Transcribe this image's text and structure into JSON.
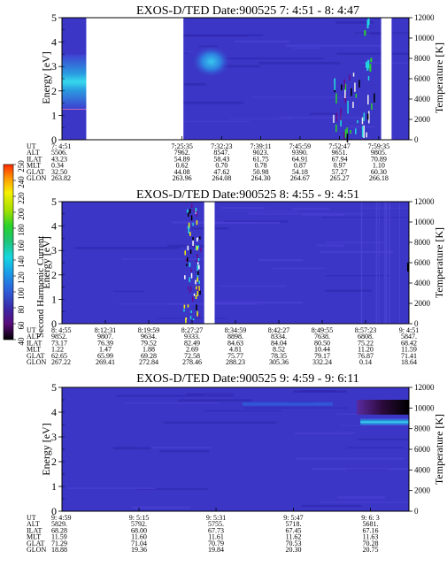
{
  "colorbar": {
    "title": "Second Harmonic Current",
    "ticks": [
      "40",
      "60",
      "80",
      "100",
      "120",
      "140",
      "160",
      "180",
      "200",
      "220",
      "240",
      "250"
    ],
    "colors": [
      "#000000",
      "#6a0a8a",
      "#3a2aa8",
      "#2f5fd9",
      "#1a9be8",
      "#17d6e0",
      "#20c47a",
      "#2ad22a",
      "#a6e000",
      "#f6f000",
      "#ff9a00",
      "#ff2a00"
    ]
  },
  "chart_data": [
    {
      "type": "heatmap",
      "title": "EXOS-D/TED   Date:900525  7: 4:51 - 8: 4:47",
      "ylabel": "Energy [eV]",
      "y2label": "Temperature [K]",
      "ylim": [
        0,
        5
      ],
      "y2lim": [
        0,
        12000
      ],
      "y_ticks": [
        "0",
        "1",
        "2",
        "3",
        "4",
        "5"
      ],
      "y2_ticks": [
        "0",
        "2000",
        "4000",
        "6000",
        "8000",
        "10000",
        "12000"
      ],
      "x_time_ticks": [
        "7: 4:51",
        "7:25:35",
        "7:32:23",
        "7:39:11",
        "7:45:59",
        "7:52:47",
        "7:59:35"
      ],
      "x_time_values": [
        0.0,
        0.346,
        0.46,
        0.573,
        0.686,
        0.8,
        0.913
      ],
      "data_gaps": [
        [
          0.07,
          0.35
        ],
        [
          0.92,
          0.95
        ]
      ],
      "ephemeris": [
        {
          "label": "UT",
          "values": [
            "7: 4:51",
            "7:25:35",
            "7:32:23",
            "7:39:11",
            "7:45:59",
            "7:52:47",
            "7:59:35"
          ]
        },
        {
          "label": "ALT",
          "values": [
            "5506.",
            "7962.",
            "8547.",
            "9023.",
            "9390.",
            "9651.",
            "9805."
          ]
        },
        {
          "label": "ILAT",
          "values": [
            "43.23",
            "54.89",
            "58.43",
            "61.75",
            "64.91",
            "67.94",
            "70.89"
          ]
        },
        {
          "label": "MLT",
          "values": [
            "0.34",
            "0.62",
            "0.70",
            "0.78",
            "0.87",
            "0.97",
            "1.10"
          ]
        },
        {
          "label": "GLAT",
          "values": [
            "32.50",
            "44.08",
            "47.62",
            "50.98",
            "54.18",
            "57.27",
            "60.30"
          ]
        },
        {
          "label": "GLON",
          "values": [
            "263.82",
            "263.96",
            "264.08",
            "264.30",
            "264.67",
            "265.27",
            "266.18"
          ]
        }
      ]
    },
    {
      "type": "heatmap",
      "title": "EXOS-D/TED   Date:900525  8: 4:55 - 9: 4:51",
      "ylabel": "Energy [eV]",
      "y2label": "Temperature [K]",
      "ylim": [
        0,
        5
      ],
      "y2lim": [
        0,
        12000
      ],
      "y_ticks": [
        "0",
        "1",
        "2",
        "3",
        "4",
        "5"
      ],
      "y2_ticks": [
        "0",
        "2000",
        "4000",
        "6000",
        "8000",
        "10000",
        "12000"
      ],
      "x_time_ticks": [
        "8: 4:55",
        "8:12:31",
        "8:19:59",
        "8:27:27",
        "8:34:59",
        "8:42:27",
        "8:49:55",
        "8:57:23",
        "9: 4:51"
      ],
      "x_time_values": [
        0.0,
        0.125,
        0.25,
        0.375,
        0.5,
        0.625,
        0.75,
        0.875,
        1.0
      ],
      "data_gaps": [
        [
          0.41,
          0.44
        ]
      ],
      "ephemeris": [
        {
          "label": "UT",
          "values": [
            "8: 4:55",
            "8:12:31",
            "8:19:59",
            "8:27:27",
            "8:34:59",
            "8:42:27",
            "8:49:55",
            "8:57:23",
            "9: 4:51"
          ]
        },
        {
          "label": "ALT",
          "values": [
            "9852.",
            "9807.",
            "9634.",
            "9333.",
            "8898.",
            "8334.",
            "7638.",
            "6808.",
            "5847."
          ]
        },
        {
          "label": "ILAT",
          "values": [
            "73.17",
            "76.39",
            "79.52",
            "82.49",
            "84.63",
            "84.04",
            "80.50",
            "75.22",
            "68.42"
          ]
        },
        {
          "label": "MLT",
          "values": [
            "1.22",
            "1.47",
            "1.88",
            "2.69",
            "4.81",
            "8.52",
            "10.44",
            "11.20",
            "11.59"
          ]
        },
        {
          "label": "GLAT",
          "values": [
            "62.65",
            "65.99",
            "69.28",
            "72.58",
            "75.77",
            "78.35",
            "79.17",
            "76.87",
            "71.41"
          ]
        },
        {
          "label": "GLON",
          "values": [
            "267.22",
            "269.41",
            "272.84",
            "278.46",
            "288.23",
            "305.36",
            "332.24",
            "0.14",
            "18.64"
          ]
        }
      ]
    },
    {
      "type": "heatmap",
      "title": "EXOS-D/TED   Date:900525  9: 4:59 - 9: 6:11",
      "ylabel": "Energy [eV]",
      "y2label": "Temperature [K]",
      "ylim": [
        0,
        5
      ],
      "y2lim": [
        0,
        12000
      ],
      "y_ticks": [
        "0",
        "1",
        "2",
        "3",
        "4",
        "5"
      ],
      "y2_ticks": [
        "0",
        "2000",
        "4000",
        "6000",
        "8000",
        "10000",
        "12000"
      ],
      "x_time_ticks": [
        "9: 4:59",
        "9: 5:15",
        "9: 5:31",
        "9: 5:47",
        "9: 6: 3"
      ],
      "x_time_values": [
        0.0,
        0.222,
        0.444,
        0.667,
        0.889
      ],
      "data_gaps": [],
      "ephemeris": [
        {
          "label": "UT",
          "values": [
            "9: 4:59",
            "9: 5:15",
            "9: 5:31",
            "9: 5:47",
            "9: 6: 3"
          ]
        },
        {
          "label": "ALT",
          "values": [
            "5829.",
            "5792.",
            "5755.",
            "5718.",
            "5681."
          ]
        },
        {
          "label": "ILAT",
          "values": [
            "68.28",
            "68.00",
            "67.73",
            "67.45",
            "67.16"
          ]
        },
        {
          "label": "MLT",
          "values": [
            "11.59",
            "11.60",
            "11.61",
            "11.62",
            "11.63"
          ]
        },
        {
          "label": "GLAT",
          "values": [
            "71.29",
            "71.04",
            "70.79",
            "70.53",
            "70.28"
          ]
        },
        {
          "label": "GLON",
          "values": [
            "18.88",
            "19.36",
            "19.84",
            "20.30",
            "20.75"
          ]
        }
      ]
    }
  ]
}
